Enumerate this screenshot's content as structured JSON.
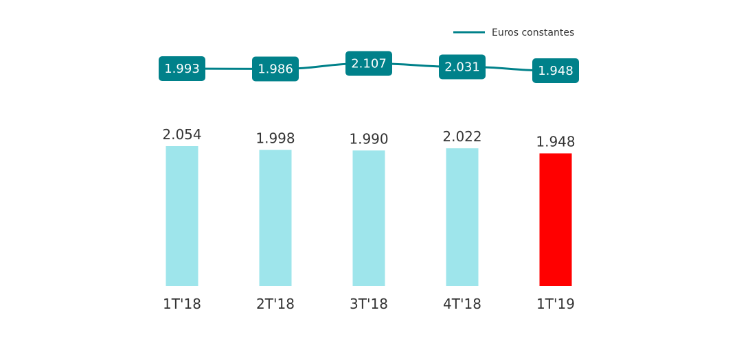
{
  "chart_data": {
    "type": "bar",
    "title": "",
    "xlabel": "",
    "ylabel": "",
    "categories": [
      "1T'18",
      "2T'18",
      "3T'18",
      "4T'18",
      "1T'19"
    ],
    "bar_series": {
      "values": [
        2054,
        1998,
        1990,
        2022,
        1948
      ],
      "labels": [
        "2.054",
        "1.998",
        "1.990",
        "2.022",
        "1.948"
      ],
      "colors": [
        "#9ee5eb",
        "#9ee5eb",
        "#9ee5eb",
        "#9ee5eb",
        "#ff0000"
      ],
      "ylim": [
        0,
        2054
      ]
    },
    "line_series": {
      "name": "Euros constantes",
      "type": "line",
      "values": [
        1993,
        1986,
        2107,
        2031,
        1948
      ],
      "labels": [
        "1.993",
        "1.986",
        "2.107",
        "2.031",
        "1.948"
      ],
      "color": "#00818a"
    },
    "legend": {
      "position": "top-right",
      "label": "Euros constantes"
    }
  }
}
